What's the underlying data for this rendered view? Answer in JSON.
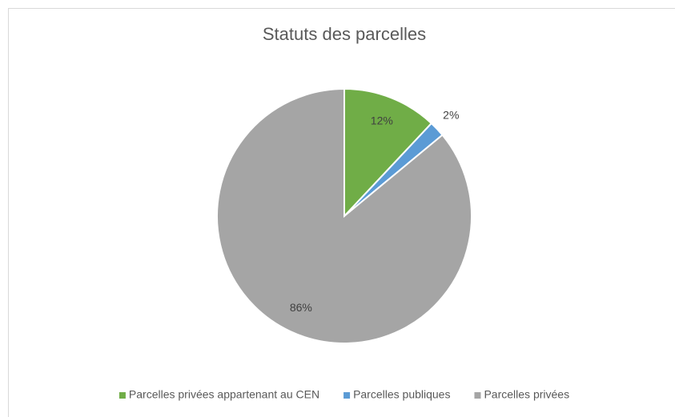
{
  "chart_data": {
    "type": "pie",
    "title": "Statuts des parcelles",
    "categories": [
      "Parcelles privées appartenant au CEN",
      "Parcelles publiques",
      "Parcelles privées"
    ],
    "values": [
      12,
      2,
      86
    ],
    "value_labels": [
      "12%",
      "2%",
      "86%"
    ],
    "colors": [
      "#70ad47",
      "#5b9bd5",
      "#a5a5a5"
    ],
    "legend": "bottom"
  }
}
